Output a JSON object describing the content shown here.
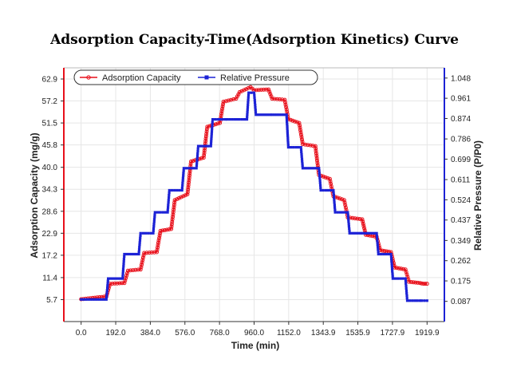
{
  "chart_data": {
    "type": "line",
    "title": "Adsorption Capacity-Time(Adsorption Kinetics) Curve",
    "xlabel": "Time (min)",
    "ylabel": "Adsorption Capacity (mg/g)",
    "y2label": "Relative Pressure (P/P0)",
    "xlim": [
      -96,
      2016
    ],
    "ylim": [
      0,
      65.8
    ],
    "y2lim": [
      0.0,
      1.092
    ],
    "x_ticks": [
      "0.0",
      "192.0",
      "384.0",
      "576.0",
      "768.0",
      "960.0",
      "1152.0",
      "1343.9",
      "1535.9",
      "1727.9",
      "1919.9"
    ],
    "x_tick_values": [
      0,
      192,
      384,
      576,
      768,
      960,
      1152,
      1343.9,
      1535.9,
      1727.9,
      1919.9
    ],
    "y_ticks": [
      "5.7",
      "11.4",
      "17.2",
      "22.9",
      "28.6",
      "34.3",
      "40.0",
      "45.8",
      "51.5",
      "57.2",
      "62.9"
    ],
    "y2_ticks": [
      "0.087",
      "0.175",
      "0.262",
      "0.349",
      "0.437",
      "0.524",
      "0.611",
      "0.699",
      "0.786",
      "0.874",
      "0.961",
      "1.048"
    ],
    "grid": true,
    "legend": "top-left",
    "series": [
      {
        "name": "Adsorption Capacity",
        "axis": "left",
        "color": "#e8101b",
        "x": [
          0,
          140,
          160,
          240,
          260,
          330,
          350,
          420,
          440,
          500,
          520,
          590,
          610,
          680,
          700,
          770,
          790,
          860,
          880,
          940,
          960,
          1040,
          1060,
          1130,
          1150,
          1210,
          1230,
          1300,
          1320,
          1380,
          1400,
          1460,
          1480,
          1560,
          1580,
          1640,
          1660,
          1720,
          1740,
          1800,
          1820,
          1880,
          1900,
          1920
        ],
        "values": [
          5.8,
          6.5,
          9.8,
          10.0,
          13.2,
          13.5,
          17.8,
          18.0,
          23.5,
          24.0,
          31.5,
          33.0,
          41.5,
          42.5,
          50.5,
          51.5,
          57.0,
          57.8,
          59.5,
          60.8,
          60.0,
          60.2,
          57.8,
          57.5,
          52.5,
          51.5,
          46.0,
          45.5,
          38.0,
          37.0,
          32.5,
          31.5,
          27.0,
          26.5,
          22.5,
          22.0,
          18.5,
          18.0,
          14.0,
          13.5,
          10.3,
          10.0,
          9.8,
          9.8
        ]
      },
      {
        "name": "Relative Pressure",
        "axis": "right",
        "color": "#1c22d6",
        "x": [
          0,
          140,
          150,
          230,
          240,
          320,
          330,
          400,
          410,
          480,
          490,
          560,
          570,
          640,
          650,
          720,
          730,
          800,
          810,
          920,
          930,
          960,
          970,
          1050,
          1060,
          1140,
          1150,
          1220,
          1230,
          1320,
          1330,
          1400,
          1410,
          1480,
          1490,
          1550,
          1560,
          1640,
          1650,
          1720,
          1730,
          1800,
          1810,
          1880,
          1890,
          1920
        ],
        "values": [
          0.095,
          0.095,
          0.185,
          0.185,
          0.29,
          0.29,
          0.38,
          0.38,
          0.47,
          0.47,
          0.565,
          0.565,
          0.66,
          0.66,
          0.755,
          0.755,
          0.87,
          0.87,
          0.87,
          0.87,
          0.985,
          0.985,
          0.89,
          0.89,
          0.89,
          0.89,
          0.75,
          0.75,
          0.66,
          0.66,
          0.565,
          0.565,
          0.47,
          0.47,
          0.38,
          0.38,
          0.38,
          0.38,
          0.29,
          0.29,
          0.185,
          0.185,
          0.09,
          0.09,
          0.09,
          0.09
        ]
      }
    ]
  }
}
